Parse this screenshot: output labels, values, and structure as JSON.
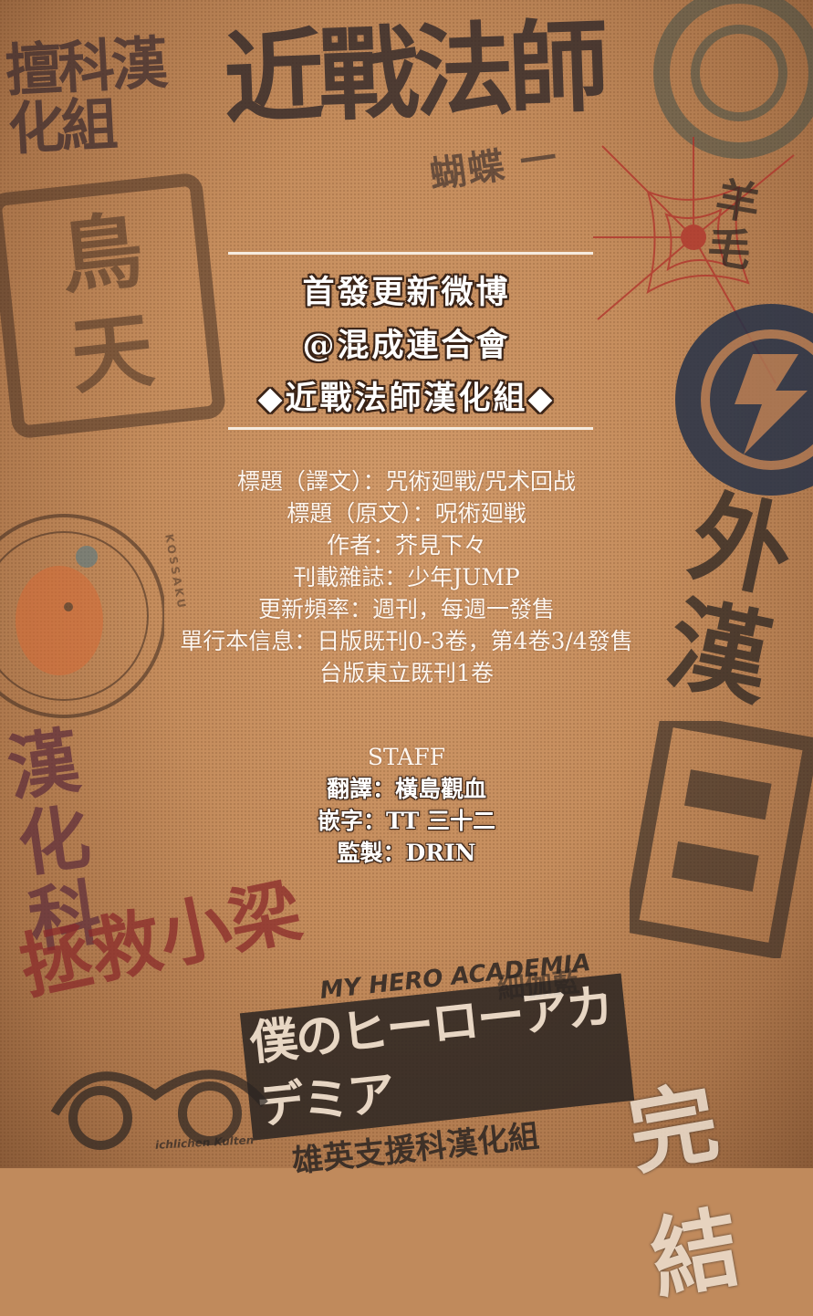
{
  "header": {
    "line1": "首發更新微博",
    "line2": "@混成連合會",
    "line3": "◆近戰法師漢化組◆"
  },
  "info": {
    "title_translated": "標題（譯文）：咒術廻戰/咒术回战",
    "title_original": "標題（原文）：呪術廻戦",
    "author": "作者：芥見下々",
    "magazine": "刊載雜誌：少年JUMP",
    "frequency": "更新頻率：週刊，每週一發售",
    "volumes_jp": "單行本信息：日版既刊0-3卷，第4卷3/4發售",
    "volumes_tw": "台版東立既刊1卷"
  },
  "staff": {
    "heading": "STAFF",
    "translation": "翻譯：橫島觀血",
    "typesetting": "嵌字：TT 三十二",
    "supervision": "監製：DRIN"
  },
  "stamps": {
    "top_left": "擅科漢化組",
    "top_center": "近戰法師",
    "top_center_small": "蝴蝶 一",
    "left_seal": "鳥天",
    "left_calligraphy": "漢化科",
    "bottom_left_red": "拯救小梁",
    "bottom_banner_en": "MY HERO ACADEMIA",
    "bottom_banner_jp": "僕のヒーローアカデミア",
    "bottom_banner_sub": "雄英支援科漢化組",
    "bottom_right": "完結",
    "right_vertical": "外漢",
    "bottom_center_small": "細伽藍",
    "round_text": "KOSSAKU",
    "bottom_left_en": "ichlichen Kulten"
  },
  "colors": {
    "background": "#c08a5c",
    "stamp_dark": "#3d2a20",
    "stamp_red": "#b0302a",
    "stamp_navy": "#263248",
    "text_white": "#ffffff"
  }
}
